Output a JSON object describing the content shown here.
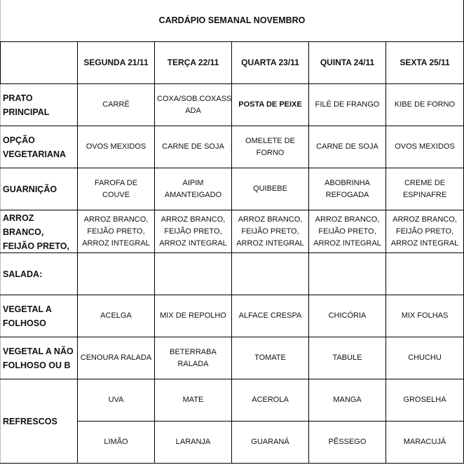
{
  "title": "CARDÁPIO SEMANAL NOVEMBRO",
  "days": [
    "SEGUNDA 21/11",
    "TERÇA 22/11",
    "QUARTA 23/11",
    "QUINTA 24/11",
    "SEXTA 25/11"
  ],
  "rows": [
    {
      "label": "PRATO PRINCIPAL",
      "cells": [
        "CARRÉ",
        "COXA/SOB.COXASS ADA",
        "POSTA DE PEIXE",
        "FILÉ DE FRANGO",
        "KIBE DE FORNO"
      ]
    },
    {
      "label": "OPÇÃO VEGETARIANA",
      "cells": [
        "OVOS MEXIDOS",
        "CARNE DE SOJA",
        "OMELETE DE FORNO",
        "CARNE DE SOJA",
        "OVOS MEXIDOS"
      ]
    },
    {
      "label": "GUARNIÇÃO",
      "cells": [
        "FAROFA DE COUVE",
        "AIPIM AMANTEIGADO",
        "QUIBEBE",
        "ABOBRINHA REFOGADA",
        "CREME DE ESPINAFRE"
      ]
    },
    {
      "label": "ARROZ BRANCO, FEIJÃO PRETO, ARROZ",
      "cells": [
        "ARROZ BRANCO, FEIJÃO PRETO, ARROZ INTEGRAL",
        "ARROZ BRANCO, FEIJÃO PRETO, ARROZ INTEGRAL",
        "ARROZ BRANCO, FEIJÃO PRETO, ARROZ INTEGRAL",
        "ARROZ BRANCO, FEIJÃO PRETO, ARROZ INTEGRAL",
        "ARROZ BRANCO, FEIJÃO PRETO, ARROZ INTEGRAL"
      ]
    },
    {
      "label": "SALADA:",
      "cells": [
        "",
        "",
        "",
        "",
        ""
      ]
    },
    {
      "label": "VEGETAL A FOLHOSO",
      "cells": [
        "ACELGA",
        "MIX DE REPOLHO",
        "ALFACE CRESPA",
        "CHICÓRIA",
        "MIX FOLHAS"
      ]
    },
    {
      "label": "VEGETAL A NÃO FOLHOSO OU B",
      "cells": [
        "CENOURA RALADA",
        "BETERRABA RALADA",
        "TOMATE",
        "TABULE",
        "CHUCHU"
      ]
    }
  ],
  "refrescos": {
    "label": "REFRESCOS",
    "line1": [
      "UVA",
      "MATE",
      "ACEROLA",
      "MANGA",
      "GROSELHA"
    ],
    "line2": [
      "LIMÃO",
      "LARANJA",
      "GUARANÁ",
      "PÊSSEGO",
      "MARACUJÁ"
    ]
  }
}
